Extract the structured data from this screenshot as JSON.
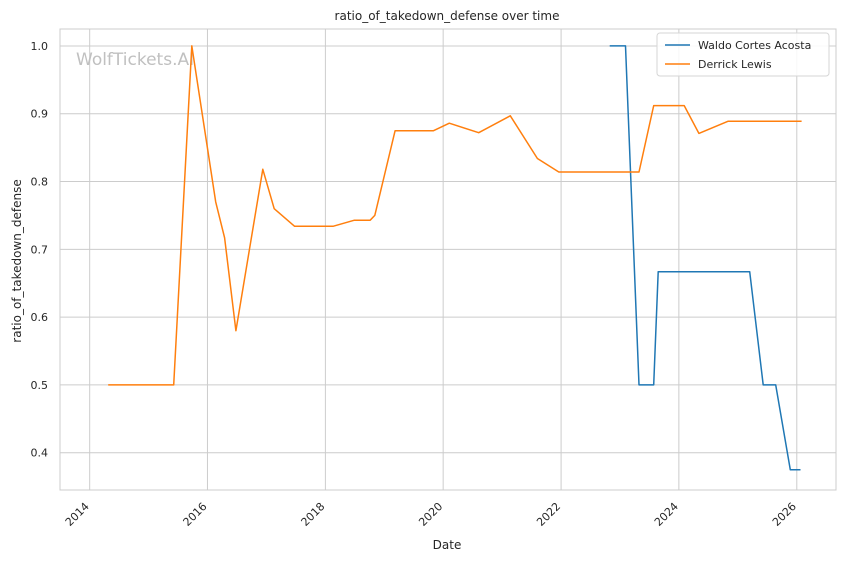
{
  "chart_data": {
    "type": "line",
    "title": "ratio_of_takedown_defense over time",
    "xlabel": "Date",
    "ylabel": "ratio_of_takedown_defense",
    "watermark": "WolfTickets.AI",
    "x_ticks": [
      "2014",
      "2016",
      "2018",
      "2020",
      "2022",
      "2024",
      "2026"
    ],
    "y_ticks": [
      "0.4",
      "0.5",
      "0.6",
      "0.7",
      "0.8",
      "0.9",
      "1.0"
    ],
    "xlim": [
      "2013-07-01",
      "2026-09-01"
    ],
    "ylim": [
      0.345,
      1.025
    ],
    "grid": true,
    "legend_position": "top-right",
    "series": [
      {
        "name": "Waldo Cortes Acosta",
        "color": "#1f77b4",
        "points": [
          [
            "2022-10-29",
            1.0
          ],
          [
            "2023-02-04",
            1.0
          ],
          [
            "2023-04-29",
            0.5
          ],
          [
            "2023-07-29",
            0.5
          ],
          [
            "2023-08-26",
            0.667
          ],
          [
            "2025-03-15",
            0.667
          ],
          [
            "2025-06-07",
            0.5
          ],
          [
            "2025-08-23",
            0.5
          ],
          [
            "2025-11-22",
            0.375
          ],
          [
            "2026-01-24",
            0.375
          ]
        ]
      },
      {
        "name": "Derrick Lewis",
        "color": "#ff7f0e",
        "points": [
          [
            "2014-04-26",
            0.5
          ],
          [
            "2015-06-06",
            0.5
          ],
          [
            "2015-09-26",
            1.0
          ],
          [
            "2016-02-21",
            0.77
          ],
          [
            "2016-04-16",
            0.717
          ],
          [
            "2016-06-25",
            0.58
          ],
          [
            "2016-12-09",
            0.818
          ],
          [
            "2017-02-18",
            0.76
          ],
          [
            "2017-06-24",
            0.734
          ],
          [
            "2018-02-17",
            0.734
          ],
          [
            "2018-06-30",
            0.743
          ],
          [
            "2018-10-06",
            0.743
          ],
          [
            "2018-11-03",
            0.75
          ],
          [
            "2019-03-09",
            0.875
          ],
          [
            "2019-11-02",
            0.875
          ],
          [
            "2020-02-08",
            0.886
          ],
          [
            "2020-08-08",
            0.872
          ],
          [
            "2021-02-20",
            0.897
          ],
          [
            "2021-08-07",
            0.834
          ],
          [
            "2021-12-18",
            0.814
          ],
          [
            "2023-04-29",
            0.814
          ],
          [
            "2023-07-29",
            0.912
          ],
          [
            "2024-02-03",
            0.912
          ],
          [
            "2024-05-04",
            0.871
          ],
          [
            "2024-11-02",
            0.889
          ],
          [
            "2026-01-31",
            0.889
          ]
        ]
      }
    ]
  }
}
